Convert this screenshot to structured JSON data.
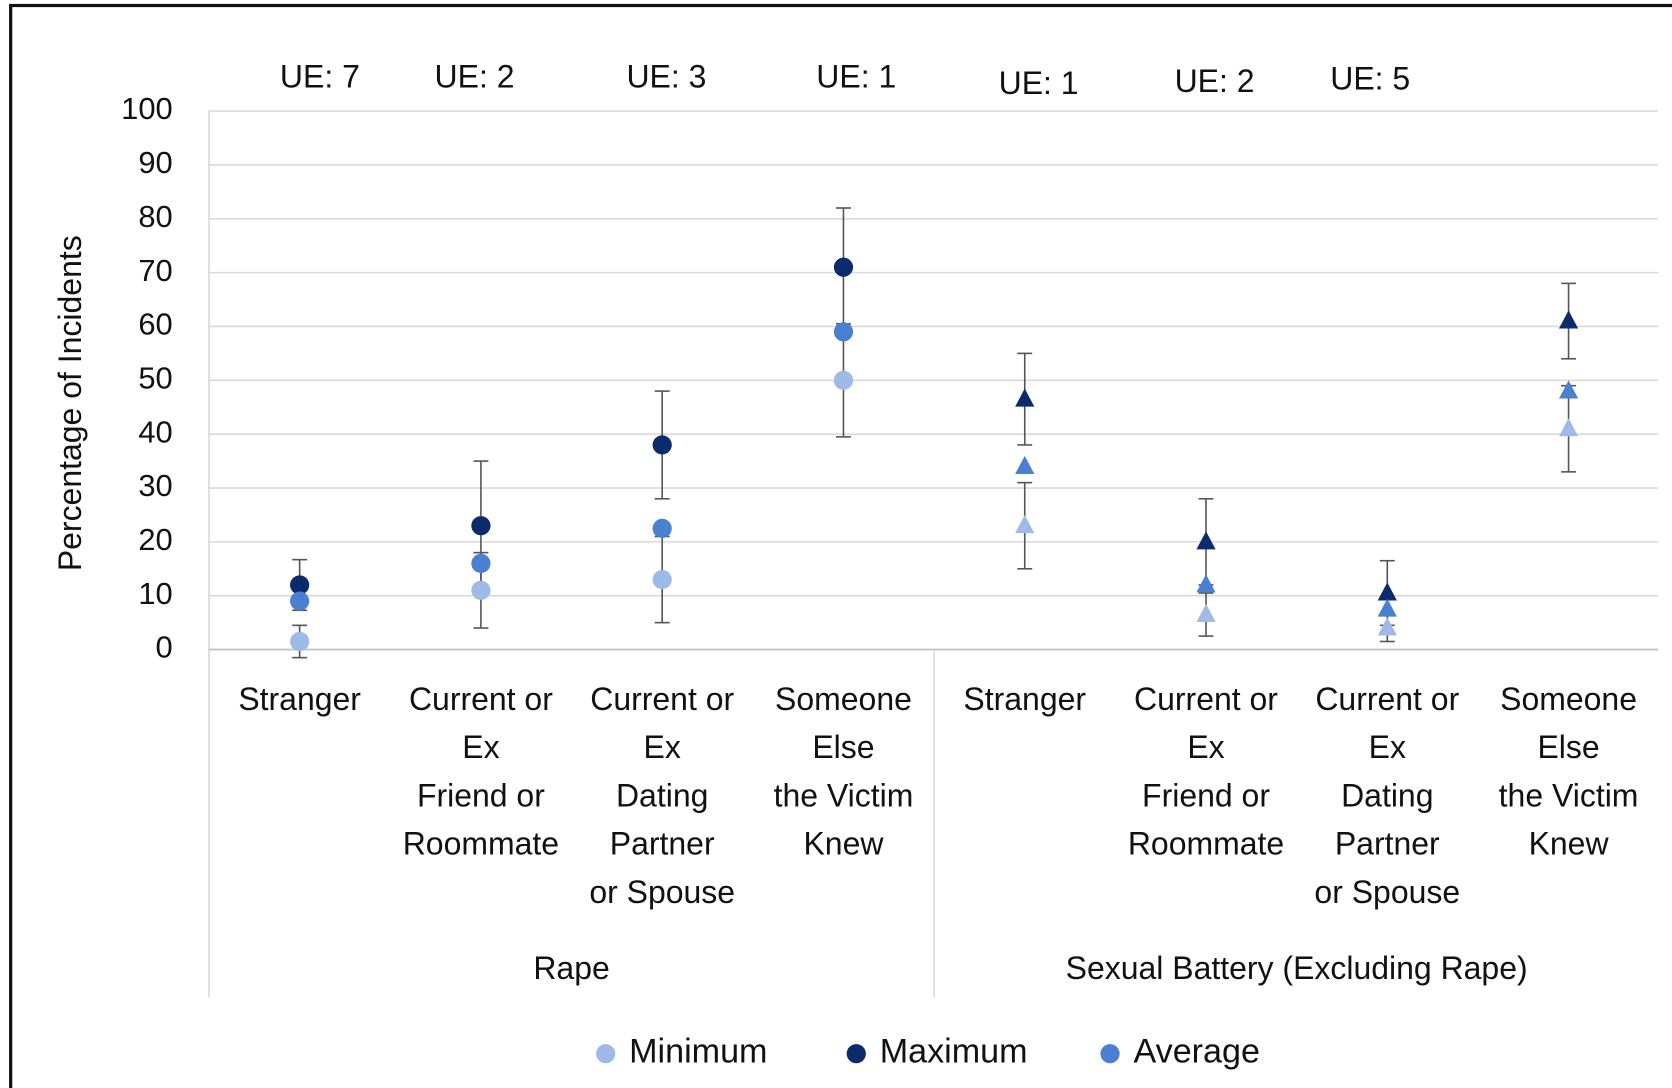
{
  "chart_data": {
    "type": "scatter",
    "y_axis_label": "Percentage of Incidents",
    "annotations": [
      "UE: 7",
      "UE: 2",
      "UE: 3",
      "UE: 1",
      "UE: 1",
      "UE: 2",
      "UE: 5"
    ],
    "groups": [
      {
        "name": "Rape",
        "marker": "circle",
        "categories": [
          [
            "Stranger"
          ],
          [
            "Current or",
            "Ex",
            "Friend or",
            "Roommate"
          ],
          [
            "Current or",
            "Ex",
            "Dating",
            "Partner",
            "or Spouse"
          ],
          [
            "Someone",
            "Else",
            "the Victim",
            "Knew"
          ]
        ]
      },
      {
        "name": "Sexual Battery (Excluding Rape)",
        "marker": "triangle",
        "categories": [
          [
            "Stranger"
          ],
          [
            "Current or",
            "Ex",
            "Friend or",
            "Roommate"
          ],
          [
            "Current or",
            "Ex",
            "Dating",
            "Partner",
            "or Spouse"
          ],
          [
            "Someone",
            "Else",
            "the Victim",
            "Knew"
          ]
        ]
      }
    ],
    "series": [
      {
        "name": "Minimum",
        "color": "#9dbbe6",
        "values": [
          1.5,
          11,
          13,
          50,
          23,
          6.5,
          4,
          41
        ],
        "errors": [
          3,
          7,
          8,
          10.5,
          8,
          4,
          2.5,
          8
        ]
      },
      {
        "name": "Maximum",
        "color": "#0b2b6c",
        "values": [
          12,
          23,
          38,
          71,
          46.5,
          20,
          10.5,
          61
        ],
        "errors": [
          4.7,
          12,
          10,
          11,
          8.5,
          8,
          6,
          7
        ]
      },
      {
        "name": "Average",
        "color": "#4a7fd1",
        "values": [
          9,
          16,
          22.5,
          59,
          34,
          12,
          7.5,
          48
        ]
      }
    ],
    "ylim": [
      0,
      100
    ],
    "yticks": [
      0,
      10,
      20,
      30,
      40,
      50,
      60,
      70,
      80,
      90,
      100
    ],
    "grid": true
  }
}
